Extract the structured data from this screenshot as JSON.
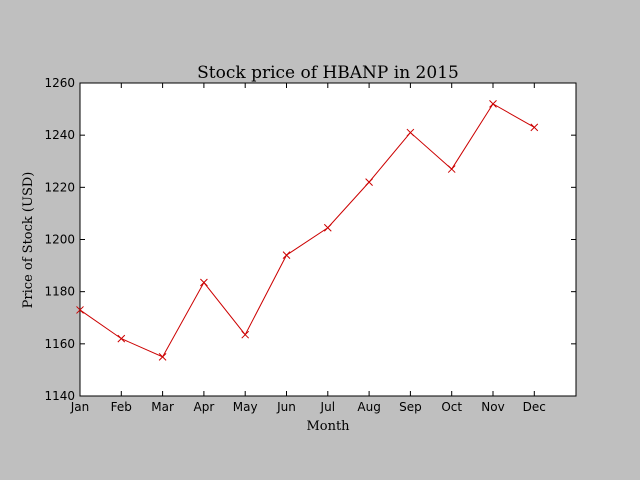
{
  "chart_data": {
    "type": "line",
    "title": "Stock price of HBANP in 2015",
    "xlabel": "Month",
    "ylabel": "Price of Stock (USD)",
    "categories": [
      "Jan",
      "Feb",
      "Mar",
      "Apr",
      "May",
      "Jun",
      "Jul",
      "Aug",
      "Sep",
      "Oct",
      "Nov",
      "Dec"
    ],
    "series": [
      {
        "values": [
          1173,
          1162,
          1155,
          1183.5,
          1163.5,
          1194,
          1204.5,
          1222,
          1241,
          1227,
          1252,
          1243
        ],
        "color": "#cc0000",
        "marker": "x"
      }
    ],
    "ylim": [
      1140,
      1260
    ],
    "yticks": [
      "1140",
      "1160",
      "1180",
      "1200",
      "1220",
      "1240",
      "1260"
    ],
    "grid": false,
    "legend": "none"
  }
}
